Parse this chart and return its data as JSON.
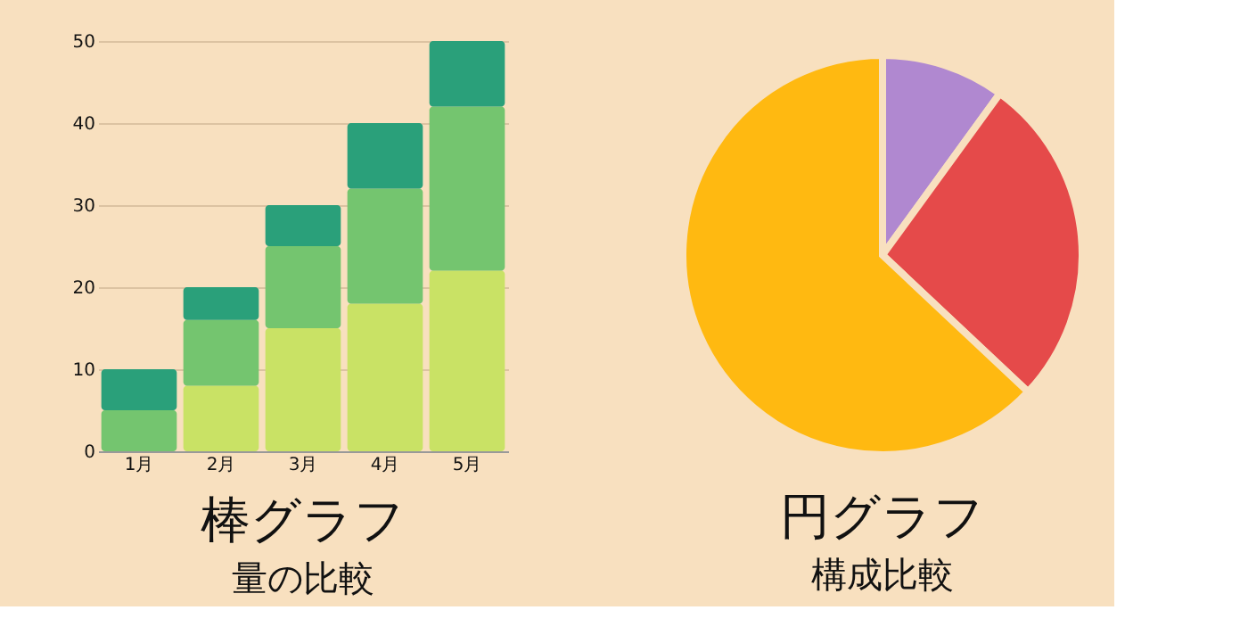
{
  "chart_data": [
    {
      "type": "bar",
      "title": "棒グラフ",
      "subtitle": "量の比較",
      "categories": [
        "1月",
        "2月",
        "3月",
        "4月",
        "5月"
      ],
      "stacked": true,
      "series": [
        {
          "color": "#c9e265",
          "values": [
            0,
            8,
            15,
            18,
            22
          ]
        },
        {
          "color": "#74c56f",
          "values": [
            5,
            8,
            10,
            14,
            20
          ]
        },
        {
          "color": "#2aa07a",
          "values": [
            5,
            4,
            5,
            8,
            8
          ]
        }
      ],
      "ylim": [
        0,
        50
      ],
      "yticks": [
        0,
        10,
        20,
        30,
        40,
        50
      ],
      "grid": "y",
      "legend": false
    },
    {
      "type": "pie",
      "title": "円グラフ",
      "subtitle": "構成比較",
      "categories": [
        null,
        null,
        null
      ],
      "values": [
        10,
        27,
        63
      ],
      "colors": [
        "#b088d0",
        "#e54a4a",
        "#ffb911"
      ],
      "legend": false
    }
  ]
}
